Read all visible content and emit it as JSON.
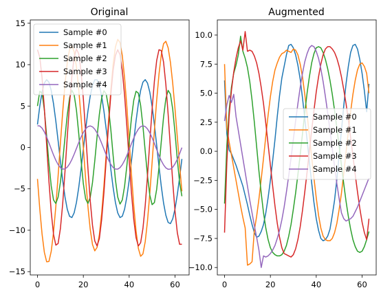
{
  "chart_data": [
    {
      "type": "line",
      "title": "Original",
      "xlabel": "",
      "ylabel": "",
      "xlim": [
        -3.15,
        66.15
      ],
      "ylim": [
        -15.4,
        15.4
      ],
      "xticks": [
        0,
        20,
        40,
        60
      ],
      "yticks": [
        -15,
        -10,
        -5,
        0,
        5,
        10,
        15
      ],
      "ytick_labels": [
        "−15",
        "−10",
        "−5",
        "0",
        "5",
        "10",
        "15"
      ],
      "legend": "upper-left",
      "x": [
        0,
        1,
        2,
        3,
        4,
        5,
        6,
        7,
        8,
        9,
        10,
        11,
        12,
        13,
        14,
        15,
        16,
        17,
        18,
        19,
        20,
        21,
        22,
        23,
        24,
        25,
        26,
        27,
        28,
        29,
        30,
        31,
        32,
        33,
        34,
        35,
        36,
        37,
        38,
        39,
        40,
        41,
        42,
        43,
        44,
        45,
        46,
        47,
        48,
        49,
        50,
        51,
        52,
        53,
        54,
        55,
        56,
        57,
        58,
        59,
        60,
        61,
        62,
        63
      ],
      "series": [
        {
          "name": "Sample #0",
          "color": "#1f77b4",
          "values": [
            2.77,
            4.98,
            6.69,
            7.78,
            8.19,
            7.88,
            6.88,
            5.27,
            3.18,
            0.81,
            -1.65,
            -3.98,
            -5.98,
            -7.47,
            -8.32,
            -8.47,
            -7.89,
            -6.64,
            -4.83,
            -2.63,
            -0.23,
            2.17,
            4.38,
            6.2,
            7.5,
            8.17,
            8.17,
            7.49,
            6.19,
            4.36,
            2.14,
            -0.25,
            -2.65,
            -4.85,
            -6.65,
            -7.9,
            -8.47,
            -8.31,
            -7.45,
            -5.96,
            -3.96,
            -1.63,
            0.83,
            3.2,
            5.28,
            6.89,
            7.89,
            8.19,
            7.77,
            6.68,
            4.96,
            2.75,
            0.26,
            -2.28,
            -4.68,
            -6.71,
            -8.2,
            -9.06,
            -9.2,
            -8.62,
            -7.42,
            -5.7,
            -3.63,
            -1.39
          ]
        },
        {
          "name": "Sample #1",
          "color": "#ff7f0e",
          "values": [
            -3.8,
            -7.42,
            -10.47,
            -12.67,
            -13.81,
            -13.77,
            -12.54,
            -10.26,
            -7.13,
            -3.44,
            0.49,
            4.29,
            7.64,
            10.24,
            11.84,
            12.29,
            11.55,
            9.72,
            7.0,
            3.65,
            -0.04,
            -3.74,
            -7.12,
            -9.87,
            -11.73,
            -12.49,
            -12.07,
            -10.51,
            -7.92,
            -4.55,
            -0.7,
            3.27,
            6.98,
            10.04,
            12.13,
            13.05,
            12.68,
            11.08,
            8.39,
            4.88,
            0.87,
            -3.23,
            -7.01,
            -10.09,
            -12.19,
            -13.15,
            -12.86,
            -11.38,
            -8.86,
            -5.56,
            -1.81,
            2.06,
            5.71,
            8.83,
            11.16,
            12.53,
            12.82,
            12.04,
            10.27,
            7.73,
            4.63,
            1.25,
            -2.15,
            -5.3
          ]
        },
        {
          "name": "Sample #2",
          "color": "#2ca02c",
          "values": [
            5.0,
            6.78,
            6.58,
            4.52,
            1.37,
            -1.94,
            -4.66,
            -6.34,
            -6.77,
            -6.0,
            -4.2,
            -1.66,
            1.22,
            3.94,
            5.99,
            6.9,
            6.37,
            4.5,
            1.67,
            -1.52,
            -4.38,
            -6.22,
            -6.76,
            -6.04,
            -4.23,
            -1.6,
            1.32,
            4.01,
            5.98,
            6.85,
            6.43,
            4.78,
            2.14,
            -0.98,
            -3.91,
            -5.99,
            -6.84,
            -6.34,
            -4.68,
            -2.18,
            0.75,
            3.56,
            5.7,
            6.78,
            6.56,
            5.07,
            2.58,
            -0.46,
            -3.44,
            -5.76,
            -6.91,
            -6.66,
            -5.05,
            -2.41,
            0.7,
            3.66,
            5.89,
            6.89,
            6.43,
            4.6,
            1.77,
            -1.47,
            -4.24,
            -5.89
          ]
        },
        {
          "name": "Sample #3",
          "color": "#d62728",
          "values": [
            11.8,
            10.9,
            8.4,
            4.7,
            0.3,
            -4.1,
            -7.8,
            -10.5,
            -11.8,
            -11.6,
            -9.8,
            -6.8,
            -2.9,
            1.3,
            5.3,
            8.6,
            10.9,
            11.9,
            11.3,
            9.2,
            5.9,
            1.8,
            -2.5,
            -6.4,
            -9.4,
            -11.3,
            -11.9,
            -11.0,
            -8.7,
            -5.4,
            -1.4,
            2.7,
            6.4,
            9.3,
            11.1,
            11.8,
            11.2,
            9.3,
            6.3,
            2.5,
            -1.6,
            -5.5,
            -8.7,
            -10.9,
            -11.9,
            -11.5,
            -9.8,
            -7.0,
            -3.4,
            0.7,
            4.6,
            8.0,
            10.5,
            11.8,
            11.7,
            10.3,
            7.6,
            4.0,
            -0.1,
            -4.2,
            -7.7,
            -10.3,
            -11.7,
            -11.7
          ]
        },
        {
          "name": "Sample #4",
          "color": "#9467bd",
          "values": [
            2.62,
            2.59,
            2.33,
            1.87,
            1.26,
            0.55,
            -0.19,
            -0.91,
            -1.55,
            -2.07,
            -2.43,
            -2.61,
            -2.59,
            -2.38,
            -1.99,
            -1.46,
            -0.82,
            -0.12,
            0.59,
            1.25,
            1.81,
            2.24,
            2.51,
            2.6,
            2.49,
            2.2,
            1.75,
            1.17,
            0.5,
            -0.21,
            -0.91,
            -1.53,
            -2.05,
            -2.42,
            -2.61,
            -2.62,
            -2.44,
            -2.08,
            -1.57,
            -0.96,
            -0.27,
            0.46,
            1.14,
            1.74,
            2.21,
            2.51,
            2.62,
            2.52,
            2.23,
            1.77,
            1.17,
            0.48,
            -0.25,
            -0.97,
            -1.6,
            -2.11,
            -2.47,
            -2.64,
            -2.62,
            -2.39,
            -1.98,
            -1.42,
            -0.75,
            -0.02
          ]
        }
      ]
    },
    {
      "type": "line",
      "title": "Augmented",
      "xlabel": "",
      "ylabel": "",
      "xlim": [
        -3.15,
        66.15
      ],
      "ylim": [
        -10.64,
        11.3
      ],
      "xticks": [
        0,
        20,
        40,
        60
      ],
      "yticks": [
        -10.0,
        -7.5,
        -5.0,
        -2.5,
        0.0,
        2.5,
        5.0,
        7.5,
        10.0
      ],
      "ytick_labels": [
        "−10.0",
        "−7.5",
        "−5.0",
        "−2.5",
        "0.0",
        "2.5",
        "5.0",
        "7.5",
        "10.0"
      ],
      "legend": "center-right",
      "x": [
        0,
        1,
        2,
        3,
        4,
        5,
        6,
        7,
        8,
        9,
        10,
        11,
        12,
        13,
        14,
        15,
        16,
        17,
        18,
        19,
        20,
        21,
        22,
        23,
        24,
        25,
        26,
        27,
        28,
        29,
        30,
        31,
        32,
        33,
        34,
        35,
        36,
        37,
        38,
        39,
        40,
        41,
        42,
        43,
        44,
        45,
        46,
        47,
        48,
        49,
        50,
        51,
        52,
        53,
        54,
        55,
        56,
        57,
        58,
        59,
        60,
        61,
        62,
        63
      ],
      "series": [
        {
          "name": "Sample #0",
          "color": "#1f77b4",
          "values": [
            6.1,
            1.5,
            0.1,
            -0.2,
            -0.7,
            -1.2,
            -1.8,
            -2.4,
            -3.0,
            -3.8,
            -4.6,
            -5.5,
            -6.3,
            -7.0,
            -7.4,
            -7.3,
            -6.9,
            -6.3,
            -5.3,
            -4.0,
            -2.5,
            -0.8,
            1.0,
            3.0,
            4.8,
            6.3,
            7.3,
            8.3,
            9.1,
            9.2,
            8.9,
            8.3,
            7.4,
            6.2,
            4.6,
            2.8,
            1.0,
            -0.9,
            -2.7,
            -4.4,
            -5.8,
            -6.8,
            -7.5,
            -7.7,
            -7.6,
            -7.3,
            -6.7,
            -5.5,
            -4.2,
            -2.4,
            -0.3,
            1.8,
            3.9,
            5.8,
            7.3,
            8.5,
            9.1,
            9.2,
            8.8,
            7.9,
            6.7,
            5.2,
            3.4,
            5.8
          ]
        },
        {
          "name": "Sample #1",
          "color": "#ff7f0e",
          "values": [
            7.5,
            2.0,
            0.8,
            -0.3,
            -1.4,
            -2.5,
            -3.6,
            -4.7,
            -5.7,
            -6.6,
            -9.8,
            -9.7,
            -9.5,
            -6.8,
            -5.6,
            -4.1,
            -2.4,
            -0.6,
            1.3,
            3.1,
            4.7,
            6.0,
            7.0,
            7.6,
            8.1,
            8.4,
            8.5,
            8.7,
            8.6,
            8.5,
            8.8,
            8.7,
            8.3,
            7.5,
            6.4,
            4.9,
            3.2,
            1.4,
            -0.5,
            -2.3,
            -4.0,
            -5.5,
            -6.6,
            -7.3,
            -7.6,
            -7.7,
            -7.7,
            -7.5,
            -7.0,
            -6.2,
            -5.0,
            -3.6,
            -1.9,
            -0.1,
            1.7,
            3.4,
            4.9,
            6.1,
            7.0,
            7.5,
            7.6,
            7.3,
            6.7,
            5.0
          ]
        },
        {
          "name": "Sample #2",
          "color": "#2ca02c",
          "values": [
            -4.5,
            0.5,
            3.5,
            5.5,
            6.7,
            7.4,
            8.3,
            9.9,
            8.6,
            8.0,
            7.2,
            6.0,
            4.4,
            2.5,
            0.4,
            -1.7,
            -3.6,
            -5.3,
            -6.6,
            -7.6,
            -8.3,
            -8.7,
            -8.9,
            -9.0,
            -9.0,
            -8.9,
            -8.6,
            -8.1,
            -7.3,
            -6.3,
            -5.0,
            -3.6,
            -2.0,
            -0.3,
            1.5,
            3.3,
            5.0,
            6.4,
            7.6,
            8.4,
            8.9,
            9.0,
            8.9,
            8.5,
            7.9,
            7.1,
            6.1,
            4.9,
            3.5,
            2.0,
            0.4,
            -1.2,
            -2.8,
            -4.3,
            -5.6,
            -6.7,
            -7.6,
            -8.2,
            -8.6,
            -8.7,
            -8.6,
            -8.2,
            -7.6,
            -6.9
          ]
        },
        {
          "name": "Sample #3",
          "color": "#d62728",
          "values": [
            -7.0,
            -1.0,
            3.0,
            5.2,
            6.8,
            8.0,
            8.9,
            9.5,
            8.7,
            10.3,
            8.6,
            8.7,
            8.6,
            8.2,
            7.6,
            6.7,
            5.5,
            4.1,
            2.4,
            0.6,
            -1.2,
            -3.0,
            -4.7,
            -6.2,
            -7.4,
            -8.3,
            -8.8,
            -8.9,
            -9.0,
            -9.1,
            -8.9,
            -8.4,
            -7.6,
            -6.5,
            -5.1,
            -3.5,
            -1.8,
            0.0,
            1.8,
            3.5,
            5.1,
            6.4,
            7.5,
            8.3,
            8.8,
            9.0,
            9.0,
            8.8,
            8.5,
            8.0,
            7.3,
            6.4,
            5.3,
            4.1,
            2.7,
            1.2,
            -0.4,
            -2.0,
            -3.5,
            -4.9,
            -6.1,
            -7.0,
            -7.6,
            -5.8
          ]
        },
        {
          "name": "Sample #4",
          "color": "#9467bd",
          "values": [
            2.6,
            4.0,
            4.8,
            4.2,
            4.9,
            3.0,
            1.8,
            0.6,
            -0.6,
            -1.8,
            -3.0,
            -4.2,
            -5.3,
            -6.4,
            -7.4,
            -8.5,
            -10.0,
            -9.0,
            -9.1,
            -9.0,
            -8.8,
            -8.5,
            -8.1,
            -7.5,
            -6.8,
            -5.9,
            -4.8,
            -3.5,
            -2.1,
            -0.6,
            1.0,
            2.6,
            4.1,
            5.5,
            6.7,
            7.7,
            8.4,
            8.9,
            9.1,
            9.0,
            8.6,
            8.0,
            7.1,
            6.0,
            4.7,
            3.3,
            1.8,
            0.2,
            -1.3,
            -2.8,
            -4.1,
            -5.3,
            -5.8,
            -6.0,
            -5.9,
            -5.8,
            -5.6,
            -5.2,
            -4.8,
            -4.3,
            -3.8,
            -3.3,
            -2.8,
            -2.3
          ]
        }
      ]
    }
  ]
}
